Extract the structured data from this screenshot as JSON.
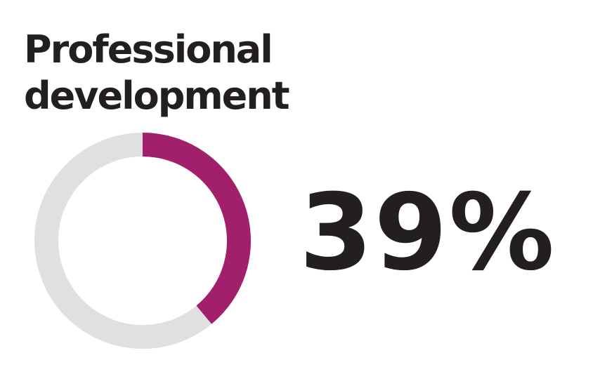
{
  "chart_data": {
    "type": "pie",
    "title_lines": [
      "Professional",
      "development"
    ],
    "value": 39,
    "value_label": "39%",
    "max": 100,
    "colors": {
      "filled": "#a21f6b",
      "track": "#e0e0e0"
    }
  }
}
